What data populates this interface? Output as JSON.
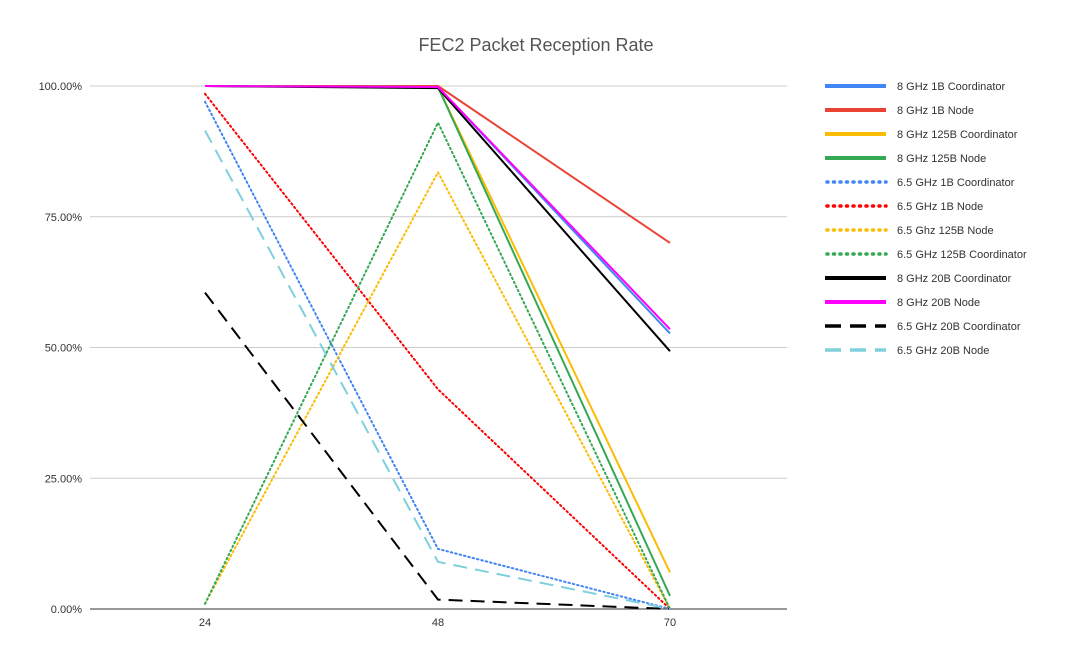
{
  "chart_data": {
    "type": "line",
    "title": "FEC2 Packet Reception Rate",
    "xlabel": "",
    "ylabel": "",
    "x": [
      24,
      48,
      70
    ],
    "x_tick_labels": [
      "24",
      "48",
      "70"
    ],
    "ylim": [
      0,
      1
    ],
    "y_ticks": [
      0,
      0.25,
      0.5,
      0.75,
      1.0
    ],
    "y_tick_labels": [
      "0.00%",
      "25.00%",
      "50.00%",
      "75.00%",
      "100.00%"
    ],
    "grid": true,
    "legend_position": "right",
    "series": [
      {
        "name": "8 GHz 1B Coordinator",
        "values": [
          1.0,
          0.998,
          0.527
        ],
        "color": "#4285F4",
        "dash": "solid"
      },
      {
        "name": "8 GHz 1B Node",
        "values": [
          1.0,
          1.0,
          0.7
        ],
        "color": "#EA4335",
        "dash": "solid"
      },
      {
        "name": "8 GHz 125B Coordinator",
        "values": [
          1.0,
          0.998,
          0.07
        ],
        "color": "#FBBC04",
        "dash": "solid"
      },
      {
        "name": "8 GHz 125B Node",
        "values": [
          1.0,
          0.998,
          0.025
        ],
        "color": "#34A853",
        "dash": "solid"
      },
      {
        "name": "6.5 GHz 1B Coordinator",
        "values": [
          0.97,
          0.115,
          0.0
        ],
        "color": "#4285F4",
        "dash": "dotted"
      },
      {
        "name": "6.5 GHz 1B Node",
        "values": [
          0.985,
          0.42,
          0.0
        ],
        "color": "#FF0000",
        "dash": "dotted"
      },
      {
        "name": "6.5 Ghz 125B Node",
        "values": [
          0.01,
          0.835,
          0.0
        ],
        "color": "#FBBC04",
        "dash": "dotted"
      },
      {
        "name": "6.5 GHz 125B Coordinator",
        "values": [
          0.01,
          0.93,
          0.0
        ],
        "color": "#34A853",
        "dash": "dotted"
      },
      {
        "name": "8 GHz 20B Coordinator",
        "values": [
          1.0,
          0.996,
          0.493
        ],
        "color": "#000000",
        "dash": "solid"
      },
      {
        "name": "8 GHz 20B Node",
        "values": [
          1.0,
          0.998,
          0.535
        ],
        "color": "#FF00FF",
        "dash": "solid"
      },
      {
        "name": "6.5 GHz 20B Coordinator",
        "values": [
          0.605,
          0.018,
          0.0
        ],
        "color": "#000000",
        "dash": "dashed"
      },
      {
        "name": "6.5 GHz 20B Node",
        "values": [
          0.915,
          0.09,
          0.0
        ],
        "color": "#7FD0DC",
        "dash": "dashed"
      }
    ]
  }
}
